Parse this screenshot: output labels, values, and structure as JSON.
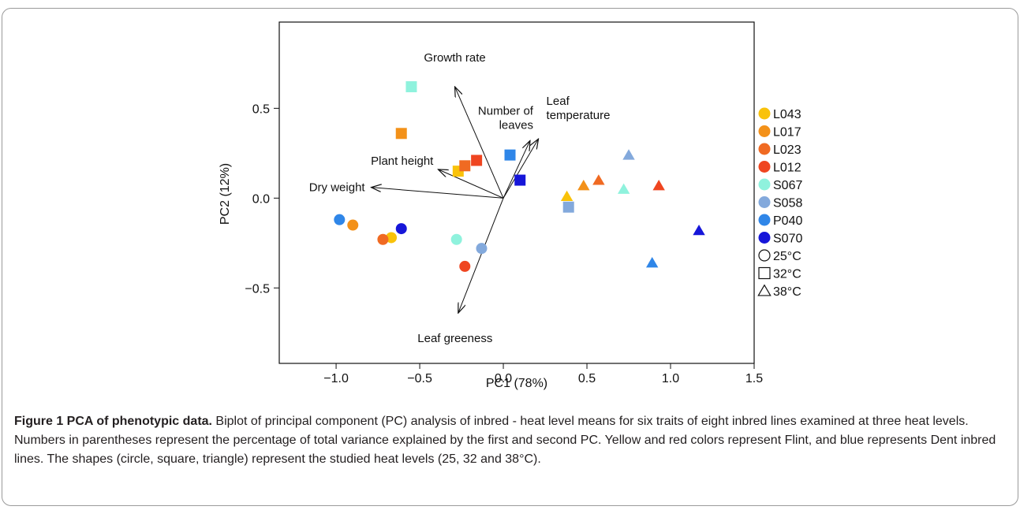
{
  "chart_data": {
    "type": "scatter",
    "title": "",
    "xlabel": "PC1 (78%)",
    "ylabel": "PC2 (12%)",
    "xlim": [
      -1.34,
      1.5
    ],
    "ylim": [
      -0.92,
      0.98
    ],
    "xticks": [
      -1.0,
      -0.5,
      0.0,
      0.5,
      1.0,
      1.5
    ],
    "xtick_labels": [
      "−1.0",
      "−0.5",
      "0.0",
      "0.5",
      "1.0",
      "1.5"
    ],
    "yticks": [
      -0.5,
      0.0,
      0.5
    ],
    "ytick_labels": [
      "−0.5",
      "0.0",
      "0.5"
    ],
    "grid": false,
    "legend_position": "right",
    "series": [
      {
        "name": "L043",
        "color": "#f9c20a",
        "points": [
          {
            "x": -0.67,
            "y": -0.22,
            "shape": "circle"
          },
          {
            "x": -0.27,
            "y": 0.15,
            "shape": "square"
          },
          {
            "x": 0.38,
            "y": 0.01,
            "shape": "triangle"
          }
        ]
      },
      {
        "name": "L017",
        "color": "#f39119",
        "points": [
          {
            "x": -0.9,
            "y": -0.15,
            "shape": "circle"
          },
          {
            "x": -0.61,
            "y": 0.36,
            "shape": "square"
          },
          {
            "x": 0.48,
            "y": 0.07,
            "shape": "triangle"
          }
        ]
      },
      {
        "name": "L023",
        "color": "#f06a22",
        "points": [
          {
            "x": -0.72,
            "y": -0.23,
            "shape": "circle"
          },
          {
            "x": -0.23,
            "y": 0.18,
            "shape": "square"
          },
          {
            "x": 0.57,
            "y": 0.1,
            "shape": "triangle"
          }
        ]
      },
      {
        "name": "L012",
        "color": "#ef4520",
        "points": [
          {
            "x": -0.23,
            "y": -0.38,
            "shape": "circle"
          },
          {
            "x": -0.16,
            "y": 0.21,
            "shape": "square"
          },
          {
            "x": 0.93,
            "y": 0.07,
            "shape": "triangle"
          }
        ]
      },
      {
        "name": "S067",
        "color": "#8ff2dd",
        "points": [
          {
            "x": -0.28,
            "y": -0.23,
            "shape": "circle"
          },
          {
            "x": -0.55,
            "y": 0.62,
            "shape": "square"
          },
          {
            "x": 0.72,
            "y": 0.05,
            "shape": "triangle"
          }
        ]
      },
      {
        "name": "S058",
        "color": "#83a9dc",
        "points": [
          {
            "x": -0.13,
            "y": -0.28,
            "shape": "circle"
          },
          {
            "x": 0.39,
            "y": -0.05,
            "shape": "square"
          },
          {
            "x": 0.75,
            "y": 0.24,
            "shape": "triangle"
          }
        ]
      },
      {
        "name": "P040",
        "color": "#2f86e8",
        "points": [
          {
            "x": -0.98,
            "y": -0.12,
            "shape": "circle"
          },
          {
            "x": 0.04,
            "y": 0.24,
            "shape": "square"
          },
          {
            "x": 0.89,
            "y": -0.36,
            "shape": "triangle"
          }
        ]
      },
      {
        "name": "S070",
        "color": "#1616d9",
        "points": [
          {
            "x": -0.61,
            "y": -0.17,
            "shape": "circle"
          },
          {
            "x": 0.1,
            "y": 0.1,
            "shape": "square"
          },
          {
            "x": 1.17,
            "y": -0.18,
            "shape": "triangle"
          }
        ]
      }
    ],
    "shape_legend": [
      {
        "shape": "circle",
        "label": "25°C"
      },
      {
        "shape": "square",
        "label": "32°C"
      },
      {
        "shape": "triangle",
        "label": "38°C"
      }
    ],
    "vectors": [
      {
        "label": "Growth rate",
        "x": -0.29,
        "y": 0.62
      },
      {
        "label": "Number of leaves",
        "x": 0.16,
        "y": 0.32
      },
      {
        "label": "Leaf temperature",
        "x": 0.21,
        "y": 0.33
      },
      {
        "label": "Plant height",
        "x": -0.39,
        "y": 0.16
      },
      {
        "label": "Dry weight",
        "x": -0.79,
        "y": 0.06
      },
      {
        "label": "Leaf greeness",
        "x": -0.27,
        "y": -0.64
      }
    ]
  },
  "caption": {
    "bold": "Figure 1 PCA of phenotypic data.",
    "text": " Biplot of principal component (PC) analysis of inbred - heat level means for six traits of eight inbred lines examined at three heat levels. Numbers in parentheses represent the percentage of total variance explained by the first and second PC. Yellow and red colors represent Flint, and blue represents Dent inbred lines. The shapes (circle, square, triangle) represent the studied heat levels (25, 32 and 38°C)."
  }
}
